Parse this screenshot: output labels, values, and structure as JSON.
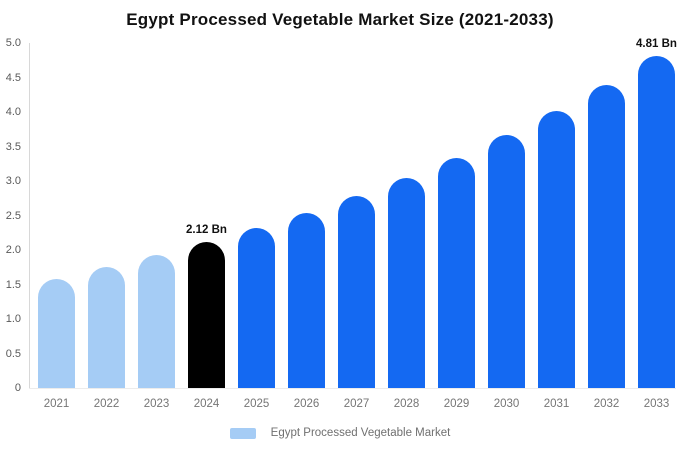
{
  "chart_data": {
    "type": "bar",
    "title": "Egypt Processed Vegetable Market Size (2021-2033)",
    "categories": [
      "2021",
      "2022",
      "2023",
      "2024",
      "2025",
      "2026",
      "2027",
      "2028",
      "2029",
      "2030",
      "2031",
      "2032",
      "2033"
    ],
    "values": [
      1.58,
      1.75,
      1.93,
      2.12,
      2.32,
      2.54,
      2.78,
      3.05,
      3.34,
      3.66,
      4.01,
      4.39,
      4.81
    ],
    "unit": "Bn",
    "bar_groups": [
      "historical",
      "historical",
      "historical",
      "highlight",
      "forecast",
      "forecast",
      "forecast",
      "forecast",
      "forecast",
      "forecast",
      "forecast",
      "forecast",
      "forecast"
    ],
    "bar_labels": {
      "2024": "2.12 Bn",
      "2033": "4.81 Bn"
    },
    "xlabel": "",
    "ylabel": "",
    "ylim": [
      0,
      5
    ],
    "y_tick_step": 0.5,
    "y_ticks": [
      "0",
      "0.5",
      "1.0",
      "1.5",
      "2.0",
      "2.5",
      "3.0",
      "3.5",
      "4.0",
      "4.5",
      "5.0"
    ],
    "grid": false,
    "legend_position": "bottom"
  },
  "legend": {
    "label": "Egypt Processed Vegetable Market"
  },
  "colors": {
    "historical": "#A5CCF5",
    "highlight": "#000000",
    "forecast": "#1469F2",
    "axis_line": "#D8D8D8",
    "baseline": "#ECECEC",
    "tick_text": "#595959",
    "x_label_text": "#757575",
    "legend_text": "#707070",
    "title_text": "#111111",
    "annotation_text": "#111111",
    "background": "#FFFFFF"
  }
}
